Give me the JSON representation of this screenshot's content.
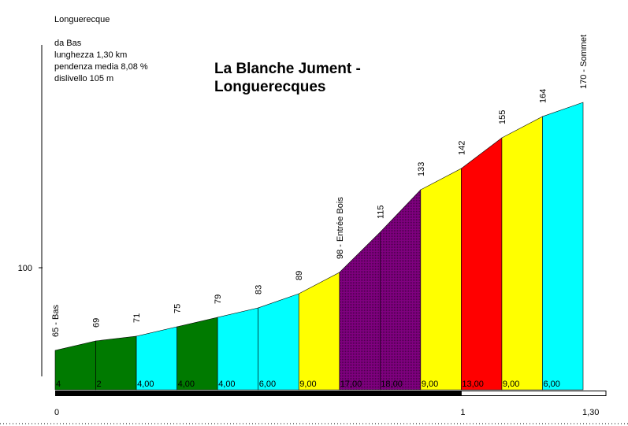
{
  "info": {
    "location": "Longuerecque",
    "from": "da Bas",
    "length": "lunghezza 1,30 km",
    "avg_gradient": "pendenza media 8,08 %",
    "elevation_gain": "dislivello 105 m"
  },
  "colors": {
    "green": "#007a00",
    "cyan": "#00ffff",
    "yellow": "#ffff00",
    "purple": "#800080",
    "red": "#ff0000",
    "black": "#000000"
  },
  "chart_data": {
    "type": "area",
    "title": [
      "La Blanche Jument -",
      "Longuerecques"
    ],
    "xlabel": "",
    "ylabel": "",
    "x_ticks": [
      {
        "value": 0,
        "label": "0"
      },
      {
        "value": 1,
        "label": "1"
      },
      {
        "value": 1.3,
        "label": "1,30"
      }
    ],
    "y_ticks": [
      {
        "value": 100,
        "label": "100"
      }
    ],
    "xlim": [
      0,
      1.3
    ],
    "ylim": [
      50,
      190
    ],
    "grid": false,
    "points": [
      {
        "x": 0.0,
        "y": 65,
        "label": "65 - Bas"
      },
      {
        "x": 0.1,
        "y": 69,
        "label": "69"
      },
      {
        "x": 0.2,
        "y": 71,
        "label": "71"
      },
      {
        "x": 0.3,
        "y": 75,
        "label": "75"
      },
      {
        "x": 0.4,
        "y": 79,
        "label": "79"
      },
      {
        "x": 0.5,
        "y": 83,
        "label": "83"
      },
      {
        "x": 0.6,
        "y": 89,
        "label": "89"
      },
      {
        "x": 0.7,
        "y": 98,
        "label": "98 - Entrée Bois"
      },
      {
        "x": 0.8,
        "y": 115,
        "label": "115"
      },
      {
        "x": 0.9,
        "y": 133,
        "label": "133"
      },
      {
        "x": 1.0,
        "y": 142,
        "label": "142"
      },
      {
        "x": 1.1,
        "y": 155,
        "label": "155"
      },
      {
        "x": 1.2,
        "y": 164,
        "label": "164"
      },
      {
        "x": 1.3,
        "y": 170,
        "label": "170 - Sommet"
      }
    ],
    "segments": [
      {
        "gradient": "4",
        "color": "green"
      },
      {
        "gradient": "2",
        "color": "green"
      },
      {
        "gradient": "4,00",
        "color": "cyan"
      },
      {
        "gradient": "4,00",
        "color": "green"
      },
      {
        "gradient": "4,00",
        "color": "cyan"
      },
      {
        "gradient": "6,00",
        "color": "cyan"
      },
      {
        "gradient": "9,00",
        "color": "yellow"
      },
      {
        "gradient": "17,00",
        "color": "purple"
      },
      {
        "gradient": "18,00",
        "color": "purple"
      },
      {
        "gradient": "9,00",
        "color": "yellow"
      },
      {
        "gradient": "13,00",
        "color": "red"
      },
      {
        "gradient": "9,00",
        "color": "yellow"
      },
      {
        "gradient": "6,00",
        "color": "cyan"
      }
    ],
    "distance_bar": {
      "km_marked": 1.0
    }
  }
}
